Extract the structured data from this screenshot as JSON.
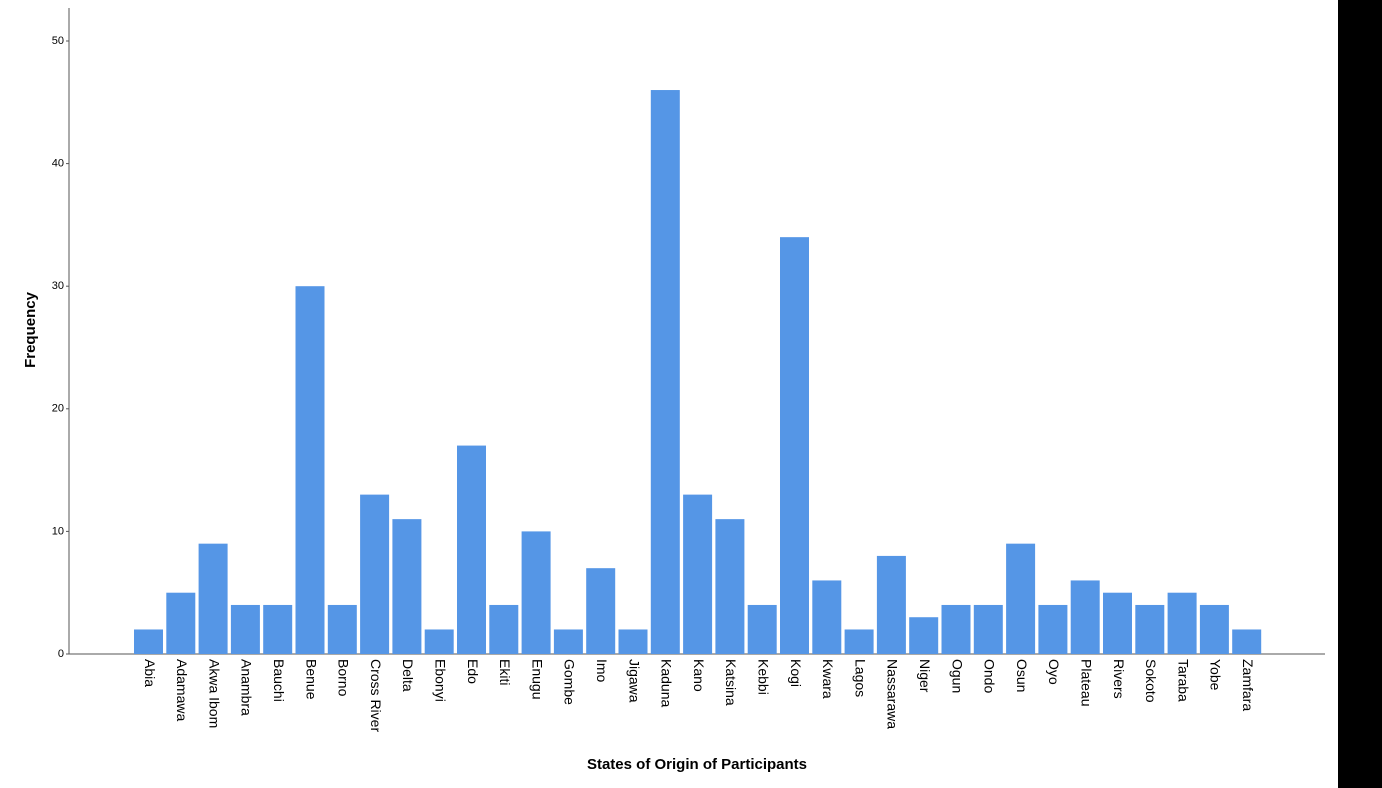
{
  "chart_data": {
    "type": "bar",
    "x_label": "States of Origin of Participants",
    "y_label": "Frequency",
    "categories": [
      "Abia",
      "Adamawa",
      "Akwa Ibom",
      "Anambra",
      "Bauchi",
      "Benue",
      "Borno",
      "Cross River",
      "Delta",
      "Ebonyi",
      "Edo",
      "Ekiti",
      "Enugu",
      "Gombe",
      "Imo",
      "Jigawa",
      "Kaduna",
      "Kano",
      "Katsina",
      "Kebbi",
      "Kogi",
      "Kwara",
      "Lagos",
      "Nassarawa",
      "Niger",
      "Ogun",
      "Ondo",
      "Osun",
      "Oyo",
      "Plateau",
      "Rivers",
      "Sokoto",
      "Taraba",
      "Yobe",
      "Zamfara"
    ],
    "values": [
      2,
      5,
      9,
      4,
      4,
      30,
      4,
      13,
      11,
      2,
      17,
      4,
      10,
      2,
      7,
      2,
      46,
      13,
      11,
      4,
      34,
      6,
      2,
      8,
      3,
      4,
      4,
      9,
      4,
      6,
      5,
      4,
      5,
      4,
      2
    ],
    "color": "#5596e6",
    "ylim": [
      0,
      50
    ],
    "yticks": [
      0,
      10,
      20,
      30,
      40,
      50
    ],
    "grid": false
  }
}
